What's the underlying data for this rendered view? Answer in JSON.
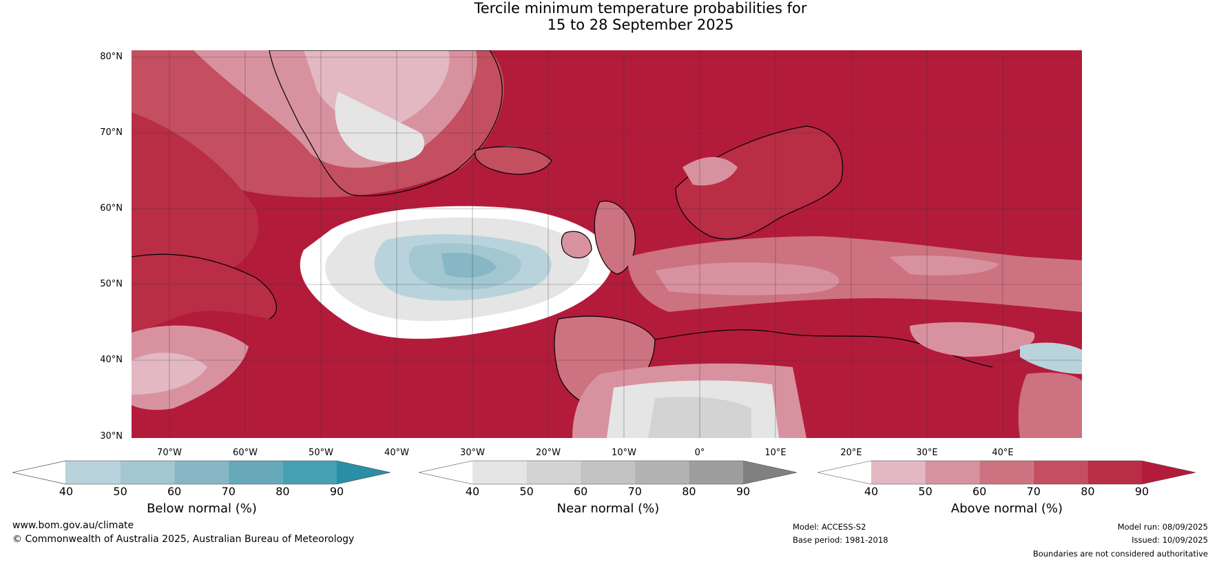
{
  "title": {
    "line1": "Tercile minimum temperature probabilities for",
    "line2": "15 to 28 September 2025"
  },
  "map": {
    "lat_labels": [
      "80°N",
      "70°N",
      "60°N",
      "50°N",
      "40°N",
      "30°N"
    ],
    "lon_labels": [
      "70°W",
      "60°W",
      "50°W",
      "40°W",
      "30°W",
      "20°W",
      "10°W",
      "0°",
      "10°E",
      "20°E",
      "30°E",
      "40°E"
    ]
  },
  "legends": [
    {
      "title": "Below normal (%)",
      "ticks": [
        "40",
        "50",
        "60",
        "70",
        "80",
        "90"
      ],
      "colors": [
        "#ffffff",
        "#b9d3dc",
        "#a2c7d1",
        "#87b7c4",
        "#67a9ba",
        "#45a1b3",
        "#2a8ea4"
      ]
    },
    {
      "title": "Near normal (%)",
      "ticks": [
        "40",
        "50",
        "60",
        "70",
        "80",
        "90"
      ],
      "colors": [
        "#ffffff",
        "#e5e5e5",
        "#d3d3d3",
        "#c3c3c3",
        "#b3b3b3",
        "#9e9e9e",
        "#808080"
      ]
    },
    {
      "title": "Above normal (%)",
      "ticks": [
        "40",
        "50",
        "60",
        "70",
        "80",
        "90"
      ],
      "colors": [
        "#ffffff",
        "#e3b8c2",
        "#d8929f",
        "#cd7280",
        "#c34f61",
        "#b92d45",
        "#b31b3b"
      ]
    }
  ],
  "footer": {
    "website": "www.bom.gov.au/climate",
    "copyright": "© Commonwealth of Australia 2025, Australian Bureau of Meteorology",
    "model": "Model: ACCESS-S2",
    "base_period": "Base period: 1981-2018",
    "model_run": "Model run: 08/09/2025",
    "issued": "Issued: 10/09/2025",
    "disclaimer": "Boundaries are not considered authoritative"
  }
}
